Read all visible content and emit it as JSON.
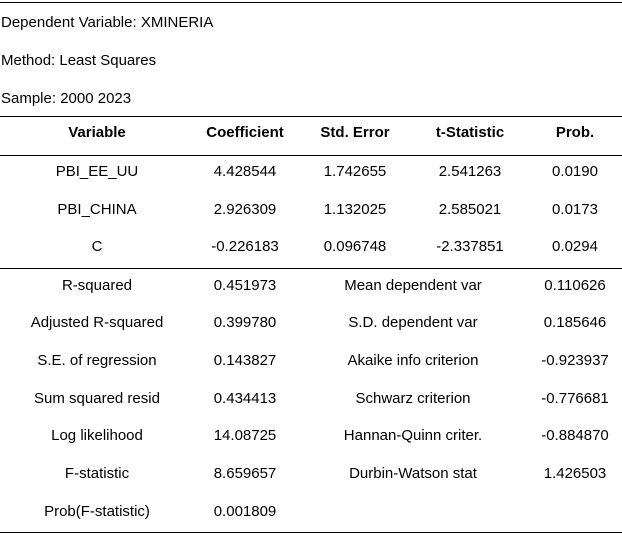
{
  "meta": {
    "dependent_variable": "Dependent Variable: XMINERIA",
    "method": "Method: Least Squares",
    "sample": "Sample: 2000 2023"
  },
  "coef_table": {
    "headers": [
      "Variable",
      "Coefficient",
      "Std. Error",
      "t-Statistic",
      "Prob."
    ],
    "rows": [
      [
        "PBI_EE_UU",
        "4.428544",
        "1.742655",
        "2.541263",
        "0.0190"
      ],
      [
        "PBI_CHINA",
        "2.926309",
        "1.132025",
        "2.585021",
        "0.0173"
      ],
      [
        "C",
        "-0.226183",
        "0.096748",
        "-2.337851",
        "0.0294"
      ]
    ]
  },
  "stats": {
    "left": [
      [
        "R-squared",
        "0.451973"
      ],
      [
        "Adjusted R-squared",
        "0.399780"
      ],
      [
        "S.E. of regression",
        "0.143827"
      ],
      [
        "Sum squared resid",
        "0.434413"
      ],
      [
        "Log likelihood",
        "14.08725"
      ],
      [
        "F-statistic",
        "8.659657"
      ],
      [
        "Prob(F-statistic)",
        "0.001809"
      ]
    ],
    "right": [
      [
        "Mean dependent var",
        "0.110626"
      ],
      [
        "S.D. dependent var",
        "0.185646"
      ],
      [
        "Akaike info criterion",
        "-0.923937"
      ],
      [
        "Schwarz criterion",
        "-0.776681"
      ],
      [
        "Hannan-Quinn criter.",
        "-0.884870"
      ],
      [
        "Durbin-Watson stat",
        "1.426503"
      ]
    ]
  }
}
